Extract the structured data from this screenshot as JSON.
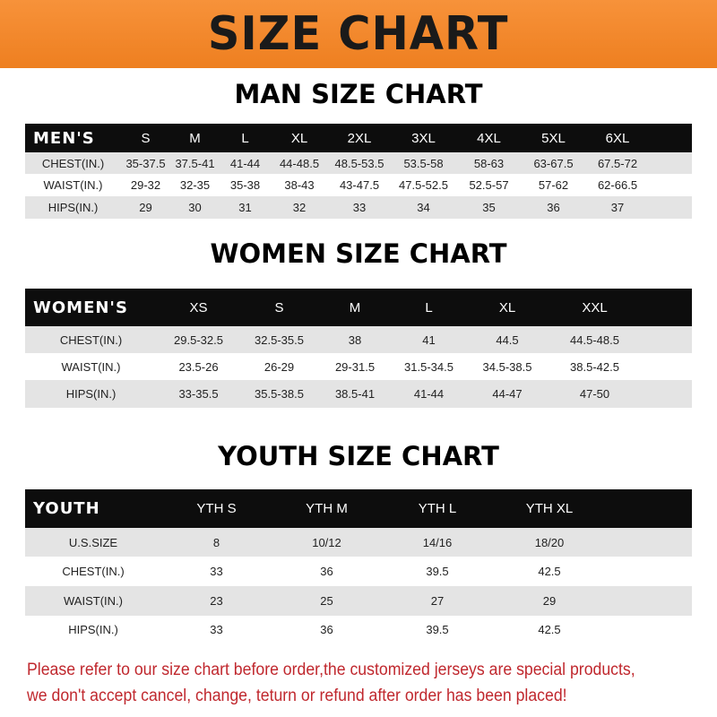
{
  "banner_title": "SIZE CHART",
  "men": {
    "title": "MAN SIZE CHART",
    "header": [
      "MEN'S",
      "S",
      "M",
      "L",
      "XL",
      "2XL",
      "3XL",
      "4XL",
      "5XL",
      "6XL"
    ],
    "rows": [
      [
        "CHEST(IN.)",
        "35-37.5",
        "37.5-41",
        "41-44",
        "44-48.5",
        "48.5-53.5",
        "53.5-58",
        "58-63",
        "63-67.5",
        "67.5-72"
      ],
      [
        "WAIST(IN.)",
        "29-32",
        "32-35",
        "35-38",
        "38-43",
        "43-47.5",
        "47.5-52.5",
        "52.5-57",
        "57-62",
        "62-66.5"
      ],
      [
        "HIPS(IN.)",
        "29",
        "30",
        "31",
        "32",
        "33",
        "34",
        "35",
        "36",
        "37"
      ]
    ]
  },
  "women": {
    "title": "WOMEN SIZE CHART",
    "header": [
      "WOMEN'S",
      "XS",
      "S",
      "M",
      "L",
      "XL",
      "XXL"
    ],
    "rows": [
      [
        "CHEST(IN.)",
        "29.5-32.5",
        "32.5-35.5",
        "38",
        "41",
        "44.5",
        "44.5-48.5"
      ],
      [
        "WAIST(IN.)",
        "23.5-26",
        "26-29",
        "29-31.5",
        "31.5-34.5",
        "34.5-38.5",
        "38.5-42.5"
      ],
      [
        "HIPS(IN.)",
        "33-35.5",
        "35.5-38.5",
        "38.5-41",
        "41-44",
        "44-47",
        "47-50"
      ]
    ]
  },
  "youth": {
    "title": "YOUTH SIZE CHART",
    "header": [
      "YOUTH",
      "YTH S",
      "YTH M",
      "YTH L",
      "YTH XL"
    ],
    "rows": [
      [
        "U.S.SIZE",
        "8",
        "10/12",
        "14/16",
        "18/20"
      ],
      [
        "CHEST(IN.)",
        "33",
        "36",
        "39.5",
        "42.5"
      ],
      [
        "WAIST(IN.)",
        "23",
        "25",
        "27",
        "29"
      ],
      [
        "HIPS(IN.)",
        "33",
        "36",
        "39.5",
        "42.5"
      ]
    ]
  },
  "footer": [
    "Please refer to our size chart before order,the customized jerseys are special products,",
    "we don't accept cancel, change, teturn or refund after order has been placed!"
  ],
  "colors": {
    "banner": "#f28a2a",
    "header_row": "#0d0d0d",
    "footer_text": "#c0282e"
  }
}
